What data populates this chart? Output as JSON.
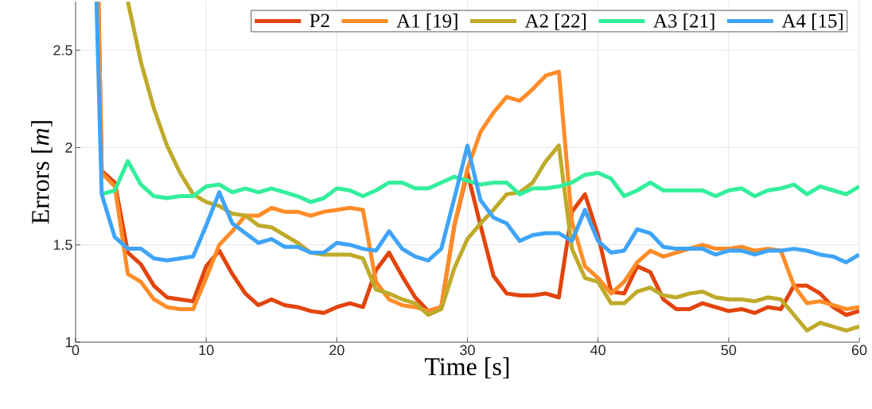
{
  "chart_data": {
    "type": "line",
    "xlabel": "Time [s]",
    "ylabel": "Errors [*m*]",
    "xlim": [
      0,
      60
    ],
    "ylim": [
      1,
      2.75
    ],
    "xticks": [
      0,
      10,
      20,
      30,
      40,
      50,
      60
    ],
    "yticks": [
      1,
      1.5,
      2,
      2.5
    ],
    "grid": true,
    "legend": "top right",
    "marker": "none",
    "line_style": "solid",
    "x": [
      2,
      3,
      4,
      5,
      6,
      7,
      8,
      9,
      10,
      11,
      12,
      13,
      14,
      15,
      16,
      17,
      18,
      19,
      20,
      21,
      22,
      23,
      24,
      25,
      26,
      27,
      28,
      29,
      30,
      31,
      32,
      33,
      34,
      35,
      36,
      37,
      38,
      39,
      40,
      41,
      42,
      43,
      44,
      45,
      46,
      47,
      48,
      49,
      50,
      51,
      52,
      53,
      54,
      55,
      56,
      57,
      58,
      59,
      60
    ],
    "series": [
      {
        "name": "P2",
        "color": "#e2440c",
        "x": [
          1.75,
          2,
          3,
          4,
          5,
          6,
          7,
          8,
          9,
          10,
          11,
          12,
          13,
          14,
          15,
          16,
          17,
          18,
          19,
          20,
          21,
          22,
          23,
          24,
          25,
          26,
          27,
          28,
          29,
          30,
          31,
          32,
          33,
          34,
          35,
          36,
          37,
          38,
          39,
          40,
          41,
          42,
          43,
          44,
          45,
          46,
          47,
          48,
          49,
          50,
          51,
          52,
          53,
          54,
          55,
          56,
          57,
          58,
          59,
          60
        ],
        "values": [
          2.75,
          1.88,
          1.82,
          1.46,
          1.4,
          1.29,
          1.23,
          1.22,
          1.21,
          1.39,
          1.47,
          1.35,
          1.25,
          1.19,
          1.22,
          1.19,
          1.18,
          1.16,
          1.15,
          1.18,
          1.2,
          1.18,
          1.37,
          1.46,
          1.34,
          1.23,
          1.16,
          1.18,
          1.6,
          1.87,
          1.6,
          1.34,
          1.25,
          1.24,
          1.24,
          1.25,
          1.23,
          1.67,
          1.76,
          1.55,
          1.26,
          1.25,
          1.39,
          1.36,
          1.22,
          1.17,
          1.17,
          1.2,
          1.18,
          1.16,
          1.17,
          1.15,
          1.18,
          1.17,
          1.29,
          1.29,
          1.25,
          1.18,
          1.14,
          1.16
        ]
      },
      {
        "name": "A1 [19]",
        "color": "#ff8c28",
        "x": [
          1.75,
          2,
          3,
          4,
          5,
          6,
          7,
          8,
          9,
          10,
          11,
          12,
          13,
          14,
          15,
          16,
          17,
          18,
          19,
          20,
          21,
          22,
          23,
          24,
          25,
          26,
          27,
          28,
          29,
          30,
          31,
          32,
          33,
          34,
          35,
          36,
          37,
          38,
          39,
          40,
          41,
          42,
          43,
          44,
          45,
          46,
          47,
          48,
          49,
          50,
          51,
          52,
          53,
          54,
          55,
          56,
          57,
          58,
          59,
          60
        ],
        "values": [
          2.75,
          1.87,
          1.8,
          1.35,
          1.31,
          1.22,
          1.18,
          1.17,
          1.17,
          1.33,
          1.5,
          1.57,
          1.65,
          1.65,
          1.69,
          1.67,
          1.67,
          1.65,
          1.67,
          1.68,
          1.69,
          1.68,
          1.31,
          1.22,
          1.19,
          1.18,
          1.16,
          1.18,
          1.6,
          1.89,
          2.08,
          2.18,
          2.26,
          2.24,
          2.3,
          2.37,
          2.39,
          1.62,
          1.39,
          1.33,
          1.25,
          1.31,
          1.41,
          1.47,
          1.44,
          1.46,
          1.48,
          1.5,
          1.48,
          1.48,
          1.49,
          1.47,
          1.48,
          1.47,
          1.29,
          1.2,
          1.21,
          1.19,
          1.17,
          1.18
        ]
      },
      {
        "name": "A2 [22]",
        "color": "#bfaa2a",
        "x": [
          4,
          5,
          6,
          7,
          8,
          9,
          10,
          11,
          12,
          13,
          14,
          15,
          16,
          17,
          18,
          19,
          20,
          21,
          22,
          23,
          24,
          25,
          26,
          27,
          28,
          29,
          30,
          31,
          32,
          33,
          34,
          35,
          36,
          37,
          38,
          39,
          40,
          41,
          42,
          43,
          44,
          45,
          46,
          47,
          48,
          49,
          50,
          51,
          52,
          53,
          54,
          55,
          56,
          57,
          58,
          59,
          60
        ],
        "values": [
          2.75,
          2.44,
          2.2,
          2.01,
          1.87,
          1.76,
          1.72,
          1.7,
          1.66,
          1.65,
          1.6,
          1.59,
          1.55,
          1.51,
          1.46,
          1.45,
          1.45,
          1.45,
          1.43,
          1.27,
          1.25,
          1.22,
          1.2,
          1.14,
          1.17,
          1.38,
          1.53,
          1.61,
          1.68,
          1.76,
          1.77,
          1.82,
          1.93,
          2.01,
          1.48,
          1.33,
          1.31,
          1.2,
          1.2,
          1.26,
          1.28,
          1.24,
          1.23,
          1.25,
          1.26,
          1.23,
          1.22,
          1.22,
          1.21,
          1.23,
          1.22,
          1.14,
          1.06,
          1.1,
          1.08,
          1.06,
          1.08
        ]
      },
      {
        "name": "A3 [21]",
        "color": "#33ee9b",
        "values": [
          1.76,
          1.78,
          1.93,
          1.81,
          1.75,
          1.74,
          1.75,
          1.75,
          1.8,
          1.81,
          1.77,
          1.79,
          1.77,
          1.79,
          1.77,
          1.75,
          1.72,
          1.74,
          1.79,
          1.78,
          1.75,
          1.78,
          1.82,
          1.82,
          1.79,
          1.79,
          1.82,
          1.85,
          1.83,
          1.81,
          1.82,
          1.82,
          1.76,
          1.79,
          1.79,
          1.8,
          1.82,
          1.86,
          1.87,
          1.84,
          1.75,
          1.78,
          1.82,
          1.78,
          1.78,
          1.78,
          1.78,
          1.75,
          1.78,
          1.79,
          1.75,
          1.78,
          1.79,
          1.81,
          1.76,
          1.8,
          1.78,
          1.76,
          1.8
        ]
      },
      {
        "name": "A4 [15]",
        "color": "#3fa4f8",
        "x": [
          1.6,
          2,
          3,
          4,
          5,
          6,
          7,
          8,
          9,
          10,
          11,
          12,
          13,
          14,
          15,
          16,
          17,
          18,
          19,
          20,
          21,
          22,
          23,
          24,
          25,
          26,
          27,
          28,
          29,
          30,
          31,
          32,
          33,
          34,
          35,
          36,
          37,
          38,
          39,
          40,
          41,
          42,
          43,
          44,
          45,
          46,
          47,
          48,
          49,
          50,
          51,
          52,
          53,
          54,
          55,
          56,
          57,
          58,
          59,
          60
        ],
        "values": [
          2.75,
          1.76,
          1.54,
          1.48,
          1.48,
          1.43,
          1.42,
          1.43,
          1.44,
          1.6,
          1.77,
          1.61,
          1.56,
          1.51,
          1.53,
          1.49,
          1.49,
          1.46,
          1.46,
          1.51,
          1.5,
          1.48,
          1.47,
          1.57,
          1.48,
          1.44,
          1.42,
          1.48,
          1.74,
          2.01,
          1.73,
          1.64,
          1.61,
          1.52,
          1.55,
          1.56,
          1.56,
          1.52,
          1.68,
          1.52,
          1.46,
          1.47,
          1.58,
          1.56,
          1.49,
          1.48,
          1.48,
          1.48,
          1.45,
          1.47,
          1.47,
          1.45,
          1.47,
          1.47,
          1.48,
          1.47,
          1.45,
          1.44,
          1.41,
          1.45
        ]
      }
    ]
  }
}
